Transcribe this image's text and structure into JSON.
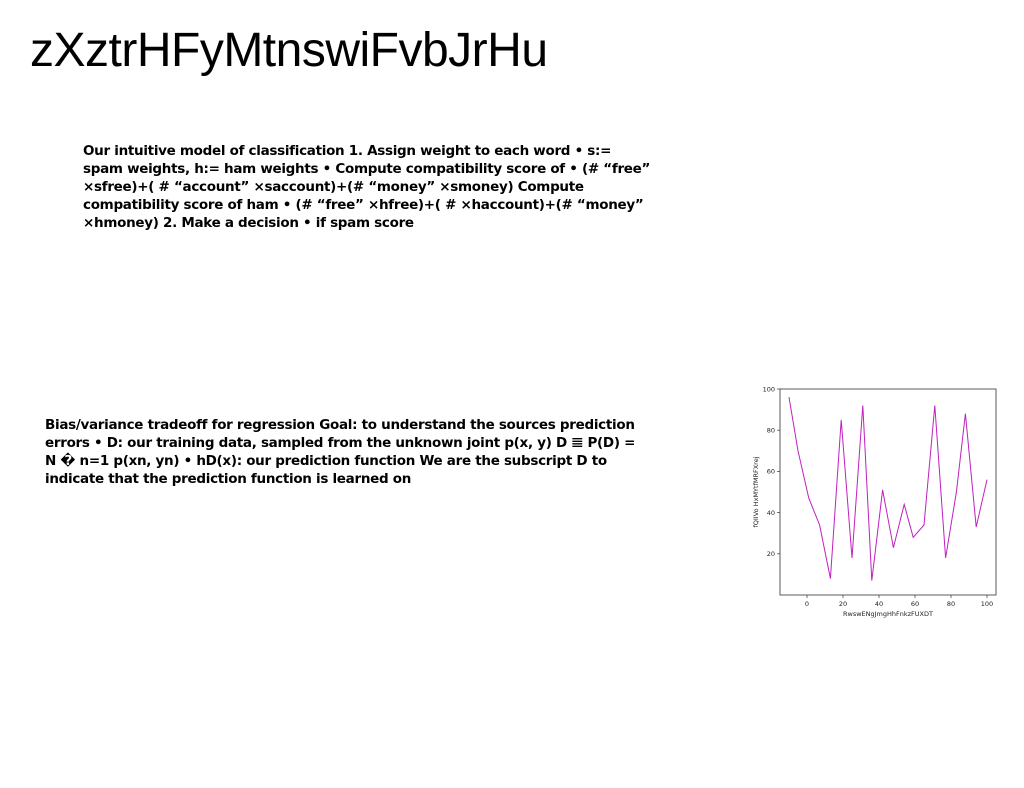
{
  "page": {
    "title": "zXztrHFyMtnswiFvbJrHu"
  },
  "paragraphs": [
    "Our intuitive model of classification 1. Assign weight to each word • s:= spam weights, h:= ham weights • Compute compatibility score of • (# “free” ×sfree)+( # “account” ×saccount)+(# “money” ×smoney) Compute compatibility score of ham • (# “free” ×hfree)+( # ×haccount)+(# “money” ×hmoney) 2. Make a decision • if spam score",
    "Bias/variance tradeoff for regression Goal: to understand the sources prediction errors • D: our training data, sampled from the unknown joint p(x, y) D 𝌆 P(D) = N � n=1 p(xn, yn) • hD(x): our prediction function We are the subscript D to indicate that the prediction function is learned on"
  ],
  "chart_data": {
    "type": "line",
    "title": "",
    "xlabel": "RwswENgJmgHhFnkzFUXDT",
    "ylabel": "fQIIVo HxMYtfMRFXrej",
    "xlim": [
      -15,
      105
    ],
    "ylim": [
      0,
      100
    ],
    "xticks": [
      0,
      20,
      40,
      60,
      80,
      100
    ],
    "yticks": [
      20,
      40,
      60,
      80,
      100
    ],
    "grid": false,
    "series": [
      {
        "color": "#c020c0",
        "x": [
          -10,
          -5,
          1,
          7,
          13,
          19,
          25,
          31,
          36,
          42,
          48,
          54,
          59,
          65,
          71,
          77,
          83,
          88,
          94,
          100
        ],
        "y": [
          96,
          70,
          47,
          34,
          8,
          85,
          18,
          92,
          7,
          51,
          23,
          44,
          28,
          34,
          92,
          18,
          50,
          88,
          33,
          56
        ]
      }
    ]
  }
}
